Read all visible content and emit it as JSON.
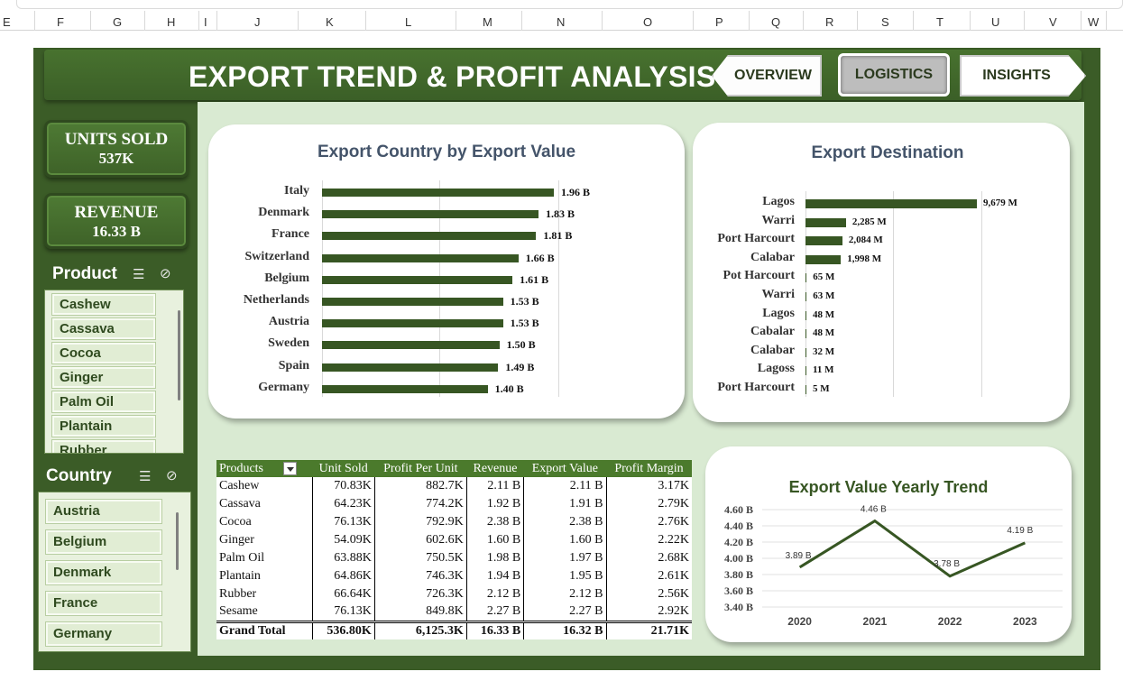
{
  "columns": [
    "E",
    "F",
    "G",
    "H",
    "I",
    "J",
    "K",
    "L",
    "M",
    "N",
    "O",
    "P",
    "Q",
    "R",
    "S",
    "T",
    "U",
    "V",
    "W"
  ],
  "header": {
    "title": "EXPORT TREND & PROFIT ANALYSIS"
  },
  "nav": {
    "overview": "OVERVIEW",
    "logistics": "LOGISTICS",
    "insights": "INSIGHTS"
  },
  "kpis": {
    "units": {
      "label": "UNITS SOLD",
      "value": "537K"
    },
    "revenue": {
      "label": "REVENUE",
      "value": "16.33 B"
    }
  },
  "product_slicer": {
    "title": "Product",
    "items": [
      "Cashew",
      "Cassava",
      "Cocoa",
      "Ginger",
      "Palm Oil",
      "Plantain",
      "Rubber"
    ]
  },
  "country_slicer": {
    "title": "Country",
    "items": [
      "Austria",
      "Belgium",
      "Denmark",
      "France",
      "Germany"
    ]
  },
  "colors": {
    "accent": "#375623",
    "frame": "#3b5c27",
    "panel": "#d9ead2",
    "header": "#4b7a2c",
    "title_text": "#44546a"
  },
  "chart_data": [
    {
      "type": "bar",
      "orientation": "horizontal",
      "title": "Export Country by Export Value",
      "categories": [
        "Italy",
        "Denmark",
        "France",
        "Switzerland",
        "Belgium",
        "Netherlands",
        "Austria",
        "Sweden",
        "Spain",
        "Germany"
      ],
      "values": [
        1.96,
        1.83,
        1.81,
        1.66,
        1.61,
        1.53,
        1.53,
        1.5,
        1.49,
        1.4
      ],
      "data_labels": [
        "1.96 B",
        "1.83 B",
        "1.81 B",
        "1.66 B",
        "1.61 B",
        "1.53 B",
        "1.53 B",
        "1.50 B",
        "1.49 B",
        "1.40 B"
      ],
      "xlim": [
        0,
        2
      ],
      "grid": true
    },
    {
      "type": "bar",
      "orientation": "horizontal",
      "title": "Export Destination",
      "categories": [
        "Lagos",
        "Warri",
        "Port Harcourt",
        "Calabar",
        "Pot Harcourt",
        "Warri",
        "Lagos",
        "Cabalar",
        "Calabar",
        "Lagoss",
        "Port Harcourt"
      ],
      "values": [
        9679,
        2285,
        2084,
        1998,
        65,
        63,
        48,
        48,
        32,
        11,
        5
      ],
      "data_labels": [
        "9,679 M",
        "2,285 M",
        "2,084 M",
        "1,998 M",
        "65 M",
        "63 M",
        "48 M",
        "48 M",
        "32 M",
        "11 M",
        "5 M"
      ],
      "xlim": [
        0,
        10000
      ],
      "grid": true
    },
    {
      "type": "line",
      "title": "Export Value Yearly Trend",
      "x": [
        "2020",
        "2021",
        "2022",
        "2023"
      ],
      "values": [
        3.89,
        4.46,
        3.78,
        4.19
      ],
      "data_labels": [
        "3.89 B",
        "4.46 B",
        "3.78 B",
        "4.19 B"
      ],
      "y_ticks": [
        "4.60 B",
        "4.40 B",
        "4.20 B",
        "4.00 B",
        "3.80 B",
        "3.60 B",
        "3.40 B"
      ],
      "ylim": [
        3.4,
        4.6
      ],
      "grid": true
    }
  ],
  "table": {
    "headers": [
      "Products",
      "Unit Sold",
      "Profit Per Unit",
      "Revenue",
      "Export Value",
      "Profit Margin"
    ],
    "rows": [
      [
        "Cashew",
        "70.83K",
        "882.7K",
        "2.11 B",
        "2.11 B",
        "3.17K"
      ],
      [
        "Cassava",
        "64.23K",
        "774.2K",
        "1.92 B",
        "1.91 B",
        "2.79K"
      ],
      [
        "Cocoa",
        "76.13K",
        "792.9K",
        "2.38 B",
        "2.38 B",
        "2.76K"
      ],
      [
        "Ginger",
        "54.09K",
        "602.6K",
        "1.60 B",
        "1.60 B",
        "2.22K"
      ],
      [
        "Palm Oil",
        "63.88K",
        "750.5K",
        "1.98 B",
        "1.97 B",
        "2.68K"
      ],
      [
        "Plantain",
        "64.86K",
        "746.3K",
        "1.94 B",
        "1.95 B",
        "2.61K"
      ],
      [
        "Rubber",
        "66.64K",
        "726.3K",
        "2.12 B",
        "2.12 B",
        "2.56K"
      ],
      [
        "Sesame",
        "76.13K",
        "849.8K",
        "2.27 B",
        "2.27 B",
        "2.92K"
      ]
    ],
    "total": [
      "Grand Total",
      "536.80K",
      "6,125.3K",
      "16.33 B",
      "16.32 B",
      "21.71K"
    ]
  }
}
